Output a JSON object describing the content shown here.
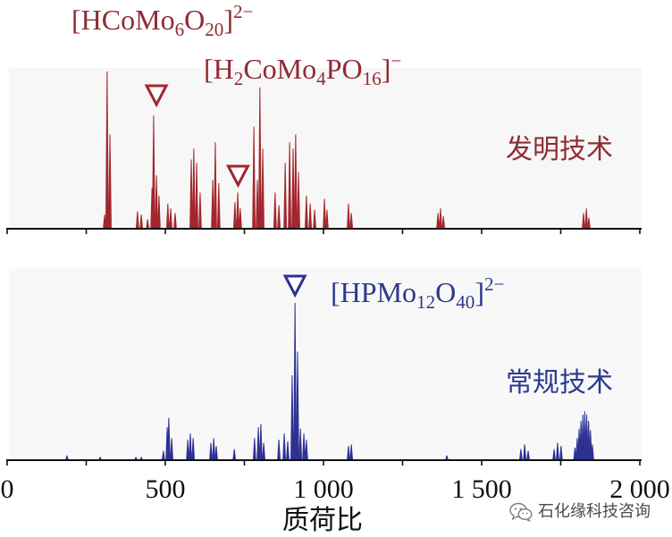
{
  "chart_data": {
    "type": "bar",
    "xlabel": "质荷比",
    "xlim": [
      0,
      2000
    ],
    "xticks": [
      0,
      500,
      1000,
      1500,
      2000
    ],
    "xtick_labels": [
      "0",
      "500",
      "1 000",
      "1 500",
      "2 000"
    ],
    "minor_tick_step": 250,
    "ylim": [
      0,
      100
    ],
    "grid": false,
    "panels": [
      {
        "label_color": "#8f2c33",
        "series": [
          {
            "name": "发明技术",
            "color": "#a3262d",
            "x": [
              308,
              316,
              325,
              412,
              424,
              444,
              458,
              463,
              472,
              480,
              508,
              517,
              531,
              582,
              590,
              599,
              610,
              650,
              658,
              669,
              720,
              729,
              737,
              780,
              791,
              799,
              808,
              847,
              859,
              879,
              893,
              904,
              912,
              921,
              946,
              958,
              972,
              1003,
              1011,
              1079,
              1088,
              1362,
              1370,
              1379,
              1822,
              1831,
              1839
            ],
            "values": [
              9,
              100,
              60,
              11,
              9,
              6,
              26,
              72,
              34,
              21,
              16,
              13,
              10,
              44,
              51,
              42,
              23,
              31,
              55,
              29,
              17,
              23,
              13,
              65,
              31,
              90,
              51,
              23,
              15,
              42,
              55,
              51,
              60,
              36,
              21,
              16,
              12,
              19,
              12,
              16,
              10,
              10,
              13,
              8,
              10,
              13,
              7
            ]
          }
        ],
        "annotations": [
          {
            "x": 472,
            "parts": [
              {
                "t": "[HCoMo"
              },
              {
                "sub": "6"
              },
              {
                "t": "O"
              },
              {
                "sub": "20"
              },
              {
                "t": "]"
              },
              {
                "sup": "2−"
              }
            ]
          },
          {
            "x": 730,
            "parts": [
              {
                "t": "[H"
              },
              {
                "sub": "2"
              },
              {
                "t": "CoMo"
              },
              {
                "sub": "4"
              },
              {
                "t": "PO"
              },
              {
                "sub": "16"
              },
              {
                "t": "]"
              },
              {
                "sup": "−"
              }
            ]
          }
        ]
      },
      {
        "label_color": "#2c3a8e",
        "series": [
          {
            "name": "常规技术",
            "color": "#2e3192",
            "x": [
              189,
              294,
              407,
              424,
              494,
              506,
              511,
              520,
              571,
              579,
              588,
              644,
              653,
              661,
              718,
              782,
              794,
              802,
              811,
              859,
              876,
              887,
              901,
              910,
              918,
              927,
              938,
              946,
              1079,
              1088,
              1390,
              1624,
              1636,
              1647,
              1729,
              1740,
              1751,
              1795,
              1802,
              1808,
              1814,
              1820,
              1826,
              1832,
              1838,
              1844,
              1850
            ],
            "values": [
              3,
              2,
              2,
              2,
              6,
              21,
              27,
              14,
              13,
              17,
              14,
              11,
              14,
              9,
              7,
              14,
              21,
              23,
              11,
              13,
              17,
              12,
              54,
              100,
              69,
              20,
              17,
              13,
              9,
              10,
              3,
              7,
              10,
              6,
              7,
              11,
              9,
              8,
              14,
              20,
              25,
              29,
              31,
              29,
              25,
              19,
              10
            ]
          }
        ],
        "annotations": [
          {
            "x": 910,
            "parts": [
              {
                "t": "[HPMo"
              },
              {
                "sub": "12"
              },
              {
                "t": "O"
              },
              {
                "sub": "40"
              },
              {
                "t": "]"
              },
              {
                "sup": "2−"
              }
            ]
          }
        ]
      }
    ]
  },
  "watermark": {
    "icon": "wechat-icon",
    "text": "石化缘科技咨询"
  }
}
